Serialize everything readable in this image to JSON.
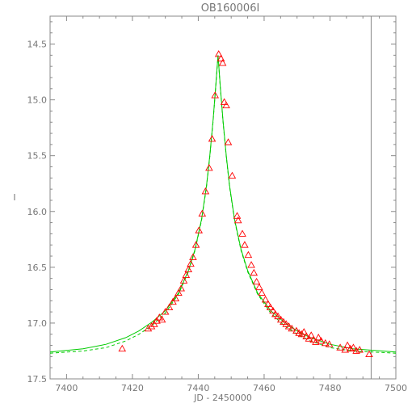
{
  "chart_data": {
    "type": "scatter",
    "title": "OB160006I",
    "xlabel": "JD - 2450000",
    "ylabel": "I",
    "xlim": [
      7395,
      7500
    ],
    "ylim": [
      17.5,
      14.25
    ],
    "y_inverted": true,
    "xticks": [
      "7400",
      "7420",
      "7440",
      "7460",
      "7480",
      "7500"
    ],
    "yticks": [
      "14.5",
      "15.0",
      "15.5",
      "16.0",
      "16.5",
      "17.0",
      "17.5"
    ],
    "vertical_line_x": 7492.5,
    "colors": {
      "observations": "#ff0000",
      "model": "#00cc00",
      "axes": "#888888",
      "text": "#777777"
    },
    "series": [
      {
        "marker": "triangle",
        "points": [
          [
            7416.9,
            17.23
          ],
          [
            7424.8,
            17.05
          ],
          [
            7425.8,
            17.03
          ],
          [
            7426.6,
            17.01
          ],
          [
            7427.4,
            16.98
          ],
          [
            7428.2,
            16.95
          ],
          [
            7429.0,
            16.97
          ],
          [
            7430.0,
            16.9
          ],
          [
            7431.2,
            16.86
          ],
          [
            7432.3,
            16.81
          ],
          [
            7433.1,
            16.78
          ],
          [
            7434.0,
            16.73
          ],
          [
            7434.8,
            16.69
          ],
          [
            7435.6,
            16.62
          ],
          [
            7436.3,
            16.57
          ],
          [
            7437.0,
            16.52
          ],
          [
            7437.7,
            16.47
          ],
          [
            7438.4,
            16.41
          ],
          [
            7439.3,
            16.3
          ],
          [
            7440.2,
            16.17
          ],
          [
            7441.2,
            16.02
          ],
          [
            7442.2,
            15.82
          ],
          [
            7443.3,
            15.61
          ],
          [
            7444.2,
            15.35
          ],
          [
            7445.1,
            14.96
          ],
          [
            7446.2,
            14.59
          ],
          [
            7446.9,
            14.63
          ],
          [
            7447.4,
            14.67
          ],
          [
            7447.9,
            15.02
          ],
          [
            7448.5,
            15.05
          ],
          [
            7449.1,
            15.38
          ],
          [
            7450.3,
            15.68
          ],
          [
            7451.8,
            16.04
          ],
          [
            7452.1,
            16.08
          ],
          [
            7453.4,
            16.2
          ],
          [
            7454.1,
            16.3
          ],
          [
            7455.2,
            16.39
          ],
          [
            7456.1,
            16.48
          ],
          [
            7456.9,
            16.55
          ],
          [
            7457.7,
            16.63
          ],
          [
            7458.5,
            16.68
          ],
          [
            7459.3,
            16.73
          ],
          [
            7460.4,
            16.79
          ],
          [
            7461.2,
            16.83
          ],
          [
            7461.9,
            16.86
          ],
          [
            7462.7,
            16.89
          ],
          [
            7463.4,
            16.92
          ],
          [
            7464.2,
            16.94
          ],
          [
            7465.1,
            16.97
          ],
          [
            7465.9,
            16.99
          ],
          [
            7466.7,
            17.01
          ],
          [
            7467.5,
            17.03
          ],
          [
            7468.4,
            17.05
          ],
          [
            7469.8,
            17.07
          ],
          [
            7470.6,
            17.09
          ],
          [
            7471.4,
            17.1
          ],
          [
            7472.1,
            17.08
          ],
          [
            7472.8,
            17.12
          ],
          [
            7473.6,
            17.14
          ],
          [
            7474.3,
            17.11
          ],
          [
            7475.0,
            17.15
          ],
          [
            7475.7,
            17.17
          ],
          [
            7476.5,
            17.13
          ],
          [
            7477.3,
            17.16
          ],
          [
            7478.6,
            17.18
          ],
          [
            7479.8,
            17.19
          ],
          [
            7483.1,
            17.22
          ],
          [
            7484.6,
            17.24
          ],
          [
            7485.3,
            17.2
          ],
          [
            7486.2,
            17.23
          ],
          [
            7487.1,
            17.22
          ],
          [
            7488.0,
            17.25
          ],
          [
            7489.0,
            17.24
          ],
          [
            7491.9,
            17.28
          ]
        ]
      },
      {
        "line": "model",
        "points": [
          [
            7395,
            17.26
          ],
          [
            7405,
            17.23
          ],
          [
            7412,
            17.19
          ],
          [
            7418,
            17.13
          ],
          [
            7422,
            17.07
          ],
          [
            7426,
            16.99
          ],
          [
            7430,
            16.89
          ],
          [
            7434,
            16.73
          ],
          [
            7437,
            16.53
          ],
          [
            7439,
            16.34
          ],
          [
            7441,
            16.07
          ],
          [
            7442.5,
            15.77
          ],
          [
            7443.5,
            15.5
          ],
          [
            7444.5,
            15.18
          ],
          [
            7445.3,
            14.88
          ],
          [
            7446.0,
            14.6
          ],
          [
            7446.7,
            14.88
          ],
          [
            7447.5,
            15.18
          ],
          [
            7448.5,
            15.5
          ],
          [
            7449.5,
            15.77
          ],
          [
            7451,
            16.07
          ],
          [
            7453,
            16.34
          ],
          [
            7455,
            16.53
          ],
          [
            7458,
            16.73
          ],
          [
            7462,
            16.89
          ],
          [
            7466,
            16.99
          ],
          [
            7470,
            17.07
          ],
          [
            7474,
            17.13
          ],
          [
            7480,
            17.19
          ],
          [
            7487,
            17.23
          ],
          [
            7500,
            17.26
          ]
        ]
      },
      {
        "line": "model-dashed",
        "points": [
          [
            7395,
            17.27
          ],
          [
            7405,
            17.25
          ],
          [
            7412,
            17.22
          ],
          [
            7418,
            17.16
          ],
          [
            7422,
            17.1
          ],
          [
            7426,
            17.02
          ],
          [
            7430,
            16.91
          ],
          [
            7434,
            16.74
          ],
          [
            7437,
            16.54
          ],
          [
            7439,
            16.35
          ],
          [
            7441,
            16.08
          ],
          [
            7442.5,
            15.78
          ],
          [
            7443.5,
            15.51
          ],
          [
            7444.5,
            15.19
          ],
          [
            7445.3,
            14.89
          ],
          [
            7446.0,
            14.6
          ],
          [
            7446.7,
            14.89
          ],
          [
            7447.5,
            15.19
          ],
          [
            7448.5,
            15.51
          ],
          [
            7449.5,
            15.78
          ],
          [
            7451,
            16.08
          ],
          [
            7453,
            16.35
          ],
          [
            7455,
            16.54
          ],
          [
            7458,
            16.74
          ],
          [
            7462,
            16.91
          ],
          [
            7466,
            17.02
          ],
          [
            7470,
            17.1
          ],
          [
            7474,
            17.16
          ],
          [
            7480,
            17.22
          ],
          [
            7487,
            17.25
          ],
          [
            7500,
            17.27
          ]
        ]
      }
    ]
  }
}
